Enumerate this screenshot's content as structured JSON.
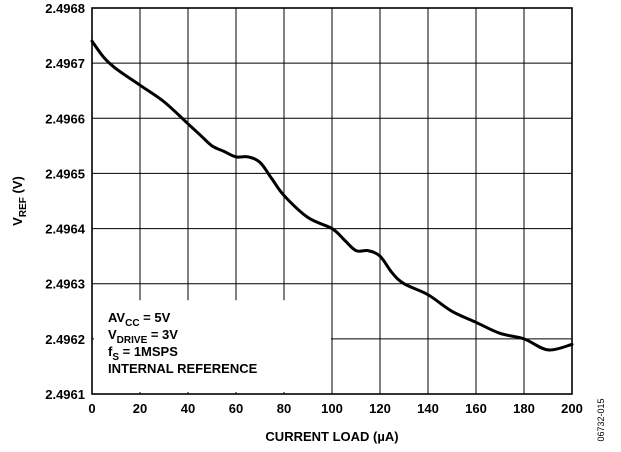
{
  "chart_data": {
    "type": "line",
    "xlabel": "CURRENT LOAD (µA)",
    "ylabel_main": "V",
    "ylabel_sub": "REF",
    "ylabel_unit": " (V)",
    "xlim": [
      0,
      200
    ],
    "ylim": [
      2.4961,
      2.4968
    ],
    "x_ticks": [
      0,
      20,
      40,
      60,
      80,
      100,
      120,
      140,
      160,
      180,
      200
    ],
    "y_ticks": [
      "2.4961",
      "2.4962",
      "2.4963",
      "2.4964",
      "2.4965",
      "2.4966",
      "2.4967",
      "2.4968"
    ],
    "grid": true,
    "series": [
      {
        "color": "#000000",
        "x": [
          0,
          5,
          10,
          20,
          30,
          40,
          45,
          50,
          55,
          60,
          65,
          70,
          75,
          80,
          90,
          100,
          105,
          110,
          115,
          120,
          125,
          130,
          140,
          150,
          160,
          170,
          180,
          190,
          200
        ],
        "y": [
          2.49674,
          2.49671,
          2.49669,
          2.49666,
          2.49663,
          2.49659,
          2.49657,
          2.49655,
          2.49654,
          2.49653,
          2.49653,
          2.49652,
          2.49649,
          2.49646,
          2.49642,
          2.4964,
          2.49638,
          2.49636,
          2.49636,
          2.49635,
          2.49632,
          2.4963,
          2.49628,
          2.49625,
          2.49623,
          2.49621,
          2.4962,
          2.49618,
          2.49619
        ]
      }
    ],
    "annotation": [
      {
        "main": "AV",
        "sub": "CC",
        "rest": " = 5V"
      },
      {
        "main": "V",
        "sub": "DRIVE",
        "rest": " = 3V"
      },
      {
        "main": "f",
        "sub": "S",
        "rest": " = 1MSPS"
      },
      {
        "main": "INTERNAL REFERENCE",
        "sub": "",
        "rest": ""
      }
    ],
    "figure_id": "06732-015"
  }
}
